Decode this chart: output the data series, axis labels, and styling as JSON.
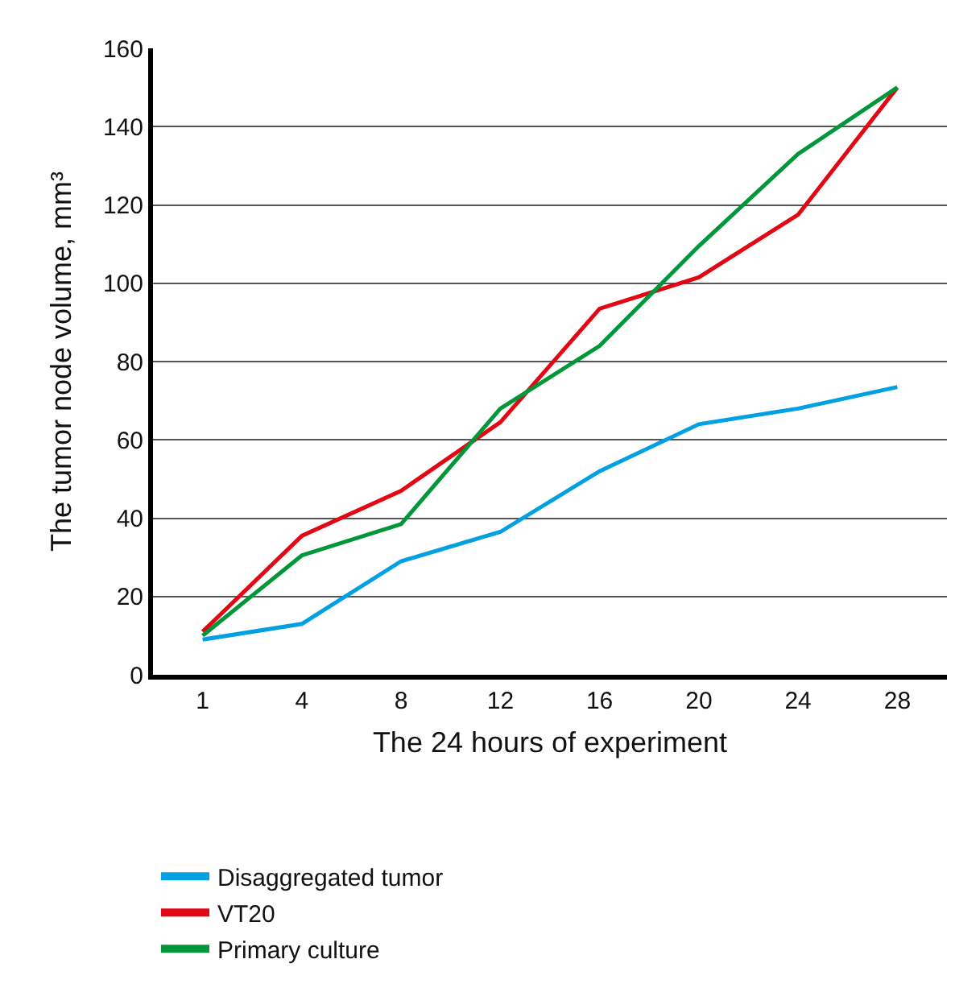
{
  "chart_data": {
    "type": "line",
    "xlabel": "The 24 hours of experiment",
    "ylabel": "The tumor node volume, mm³",
    "categories": [
      "1",
      "4",
      "8",
      "12",
      "16",
      "20",
      "24",
      "28"
    ],
    "series": [
      {
        "name": "Disaggregated tumor",
        "color": "#00a0e3",
        "values": [
          9,
          13,
          29,
          36.5,
          52,
          64,
          68,
          73.5
        ]
      },
      {
        "name": "VT20",
        "color": "#e30613",
        "values": [
          11,
          35.5,
          47,
          64.5,
          93.5,
          101.5,
          117.5,
          150
        ]
      },
      {
        "name": "Primary culture",
        "color": "#009639",
        "values": [
          10,
          30.5,
          38.5,
          68,
          84,
          109.5,
          133,
          150
        ]
      }
    ],
    "ylim": [
      0,
      160
    ],
    "yticks": [
      0,
      20,
      40,
      60,
      80,
      100,
      120,
      140,
      160
    ],
    "grid": "y",
    "legend": "bottom",
    "marker": "none",
    "line_style": "solid"
  }
}
